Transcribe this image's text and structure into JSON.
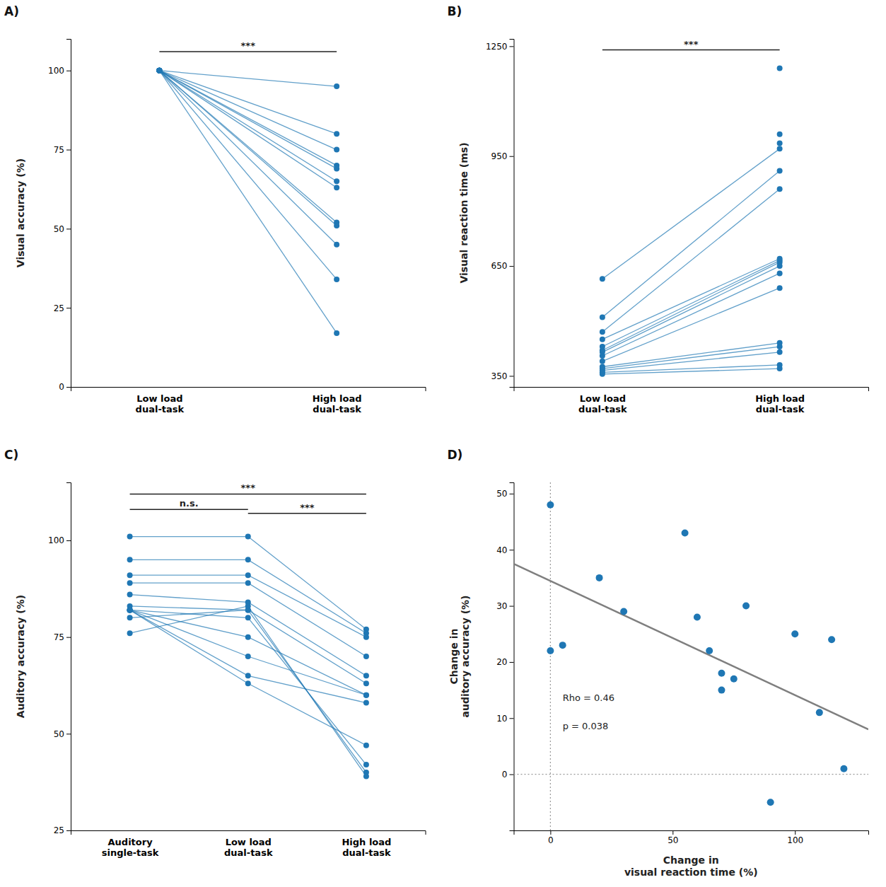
{
  "chart_data": [
    {
      "type": "line",
      "title": "A)",
      "ylabel": "Visual accuracy (%)",
      "categories": [
        "Low load\ndual-task",
        "High load\ndual-task"
      ],
      "marker": "circle",
      "series": [
        {
          "values": [
            100,
            95
          ]
        },
        {
          "values": [
            100,
            80
          ]
        },
        {
          "values": [
            100,
            75
          ]
        },
        {
          "values": [
            100,
            70
          ]
        },
        {
          "values": [
            100,
            69
          ]
        },
        {
          "values": [
            100,
            65
          ]
        },
        {
          "values": [
            100,
            63
          ]
        },
        {
          "values": [
            100,
            52
          ]
        },
        {
          "values": [
            100,
            51
          ]
        },
        {
          "values": [
            100,
            45
          ]
        },
        {
          "values": [
            100,
            34
          ]
        },
        {
          "values": [
            100,
            17
          ]
        }
      ],
      "ylim": [
        0,
        110
      ],
      "yticks": [
        0,
        25,
        50,
        75,
        100
      ],
      "annotations": [
        {
          "text": "***",
          "x": [
            0,
            1
          ],
          "y": 106
        }
      ]
    },
    {
      "type": "line",
      "title": "B)",
      "ylabel": "Visual reaction time (ms)",
      "categories": [
        "Low load\ndual-task",
        "High load\ndual-task"
      ],
      "marker": "circle",
      "series": [
        {
          "values": [
            355,
            370
          ]
        },
        {
          "values": [
            360,
            380
          ]
        },
        {
          "values": [
            365,
            415
          ]
        },
        {
          "values": [
            370,
            430
          ]
        },
        {
          "values": [
            375,
            440
          ]
        },
        {
          "values": [
            390,
            590
          ]
        },
        {
          "values": [
            405,
            630
          ]
        },
        {
          "values": [
            415,
            650
          ]
        },
        {
          "values": [
            420,
            660
          ]
        },
        {
          "values": [
            430,
            665
          ]
        },
        {
          "values": [
            450,
            670
          ]
        },
        {
          "values": [
            470,
            860
          ]
        },
        {
          "values": [
            510,
            910
          ]
        },
        {
          "values": [
            615,
            970
          ]
        },
        {
          "values": [
            null,
            985
          ]
        },
        {
          "values": [
            null,
            1010
          ]
        },
        {
          "values": [
            null,
            1190
          ]
        }
      ],
      "ylim": [
        320,
        1270
      ],
      "yticks": [
        350,
        650,
        950,
        1250
      ],
      "annotations": [
        {
          "text": "***",
          "x": [
            0,
            1
          ],
          "y": 1240
        }
      ]
    },
    {
      "type": "line",
      "title": "C)",
      "ylabel": "Auditory accuracy (%)",
      "categories": [
        "Auditory\nsingle-task",
        "Low load\ndual-task",
        "High load\ndual-task"
      ],
      "marker": "circle",
      "series": [
        {
          "values": [
            101,
            101,
            77
          ]
        },
        {
          "values": [
            95,
            95,
            76
          ]
        },
        {
          "values": [
            91,
            91,
            75
          ]
        },
        {
          "values": [
            89,
            89,
            70
          ]
        },
        {
          "values": [
            86,
            84,
            65
          ]
        },
        {
          "values": [
            83,
            82,
            63
          ]
        },
        {
          "values": [
            82,
            75,
            60
          ]
        },
        {
          "values": [
            82,
            70,
            60
          ]
        },
        {
          "values": [
            82,
            65,
            58
          ]
        },
        {
          "values": [
            82,
            63,
            47
          ]
        },
        {
          "values": [
            82,
            80,
            42
          ]
        },
        {
          "values": [
            80,
            82,
            40
          ]
        },
        {
          "values": [
            76,
            83,
            39
          ]
        }
      ],
      "ylim": [
        25,
        115
      ],
      "yticks": [
        25,
        50,
        75,
        100
      ],
      "annotations": [
        {
          "text": "n.s.",
          "x": [
            0,
            1
          ],
          "y": 108
        },
        {
          "text": "***",
          "x": [
            0,
            2
          ],
          "y": 112
        },
        {
          "text": "***",
          "x": [
            1,
            2
          ],
          "y": 107
        }
      ]
    },
    {
      "type": "scatter",
      "title": "D)",
      "xlabel": "Change in\nvisual reaction time (%)",
      "ylabel": "Change in\nauditory accuracy (%)",
      "series": [
        {
          "type": "scatter",
          "x": [
            0,
            0,
            5,
            20,
            30,
            55,
            60,
            65,
            70,
            70,
            75,
            80,
            90,
            100,
            110,
            115,
            120
          ],
          "values": [
            22,
            48,
            23,
            35,
            29,
            43,
            28,
            22,
            18,
            15,
            17,
            30,
            -5,
            25,
            11,
            24,
            1
          ]
        },
        {
          "type": "line",
          "x": [
            -15,
            130
          ],
          "values": [
            37.5,
            8.0
          ]
        }
      ],
      "xlim": [
        -15,
        130
      ],
      "ylim": [
        -10,
        52
      ],
      "xticks": [
        0,
        50,
        100
      ],
      "yticks": [
        0,
        10,
        20,
        30,
        40,
        50
      ],
      "vlines": [
        0
      ],
      "hlines": [
        0
      ],
      "annotations": [
        {
          "text": "Rho = 0.46",
          "x": 5,
          "y": 13
        },
        {
          "text": "p = 0.038",
          "x": 5,
          "y": 8
        }
      ]
    }
  ]
}
